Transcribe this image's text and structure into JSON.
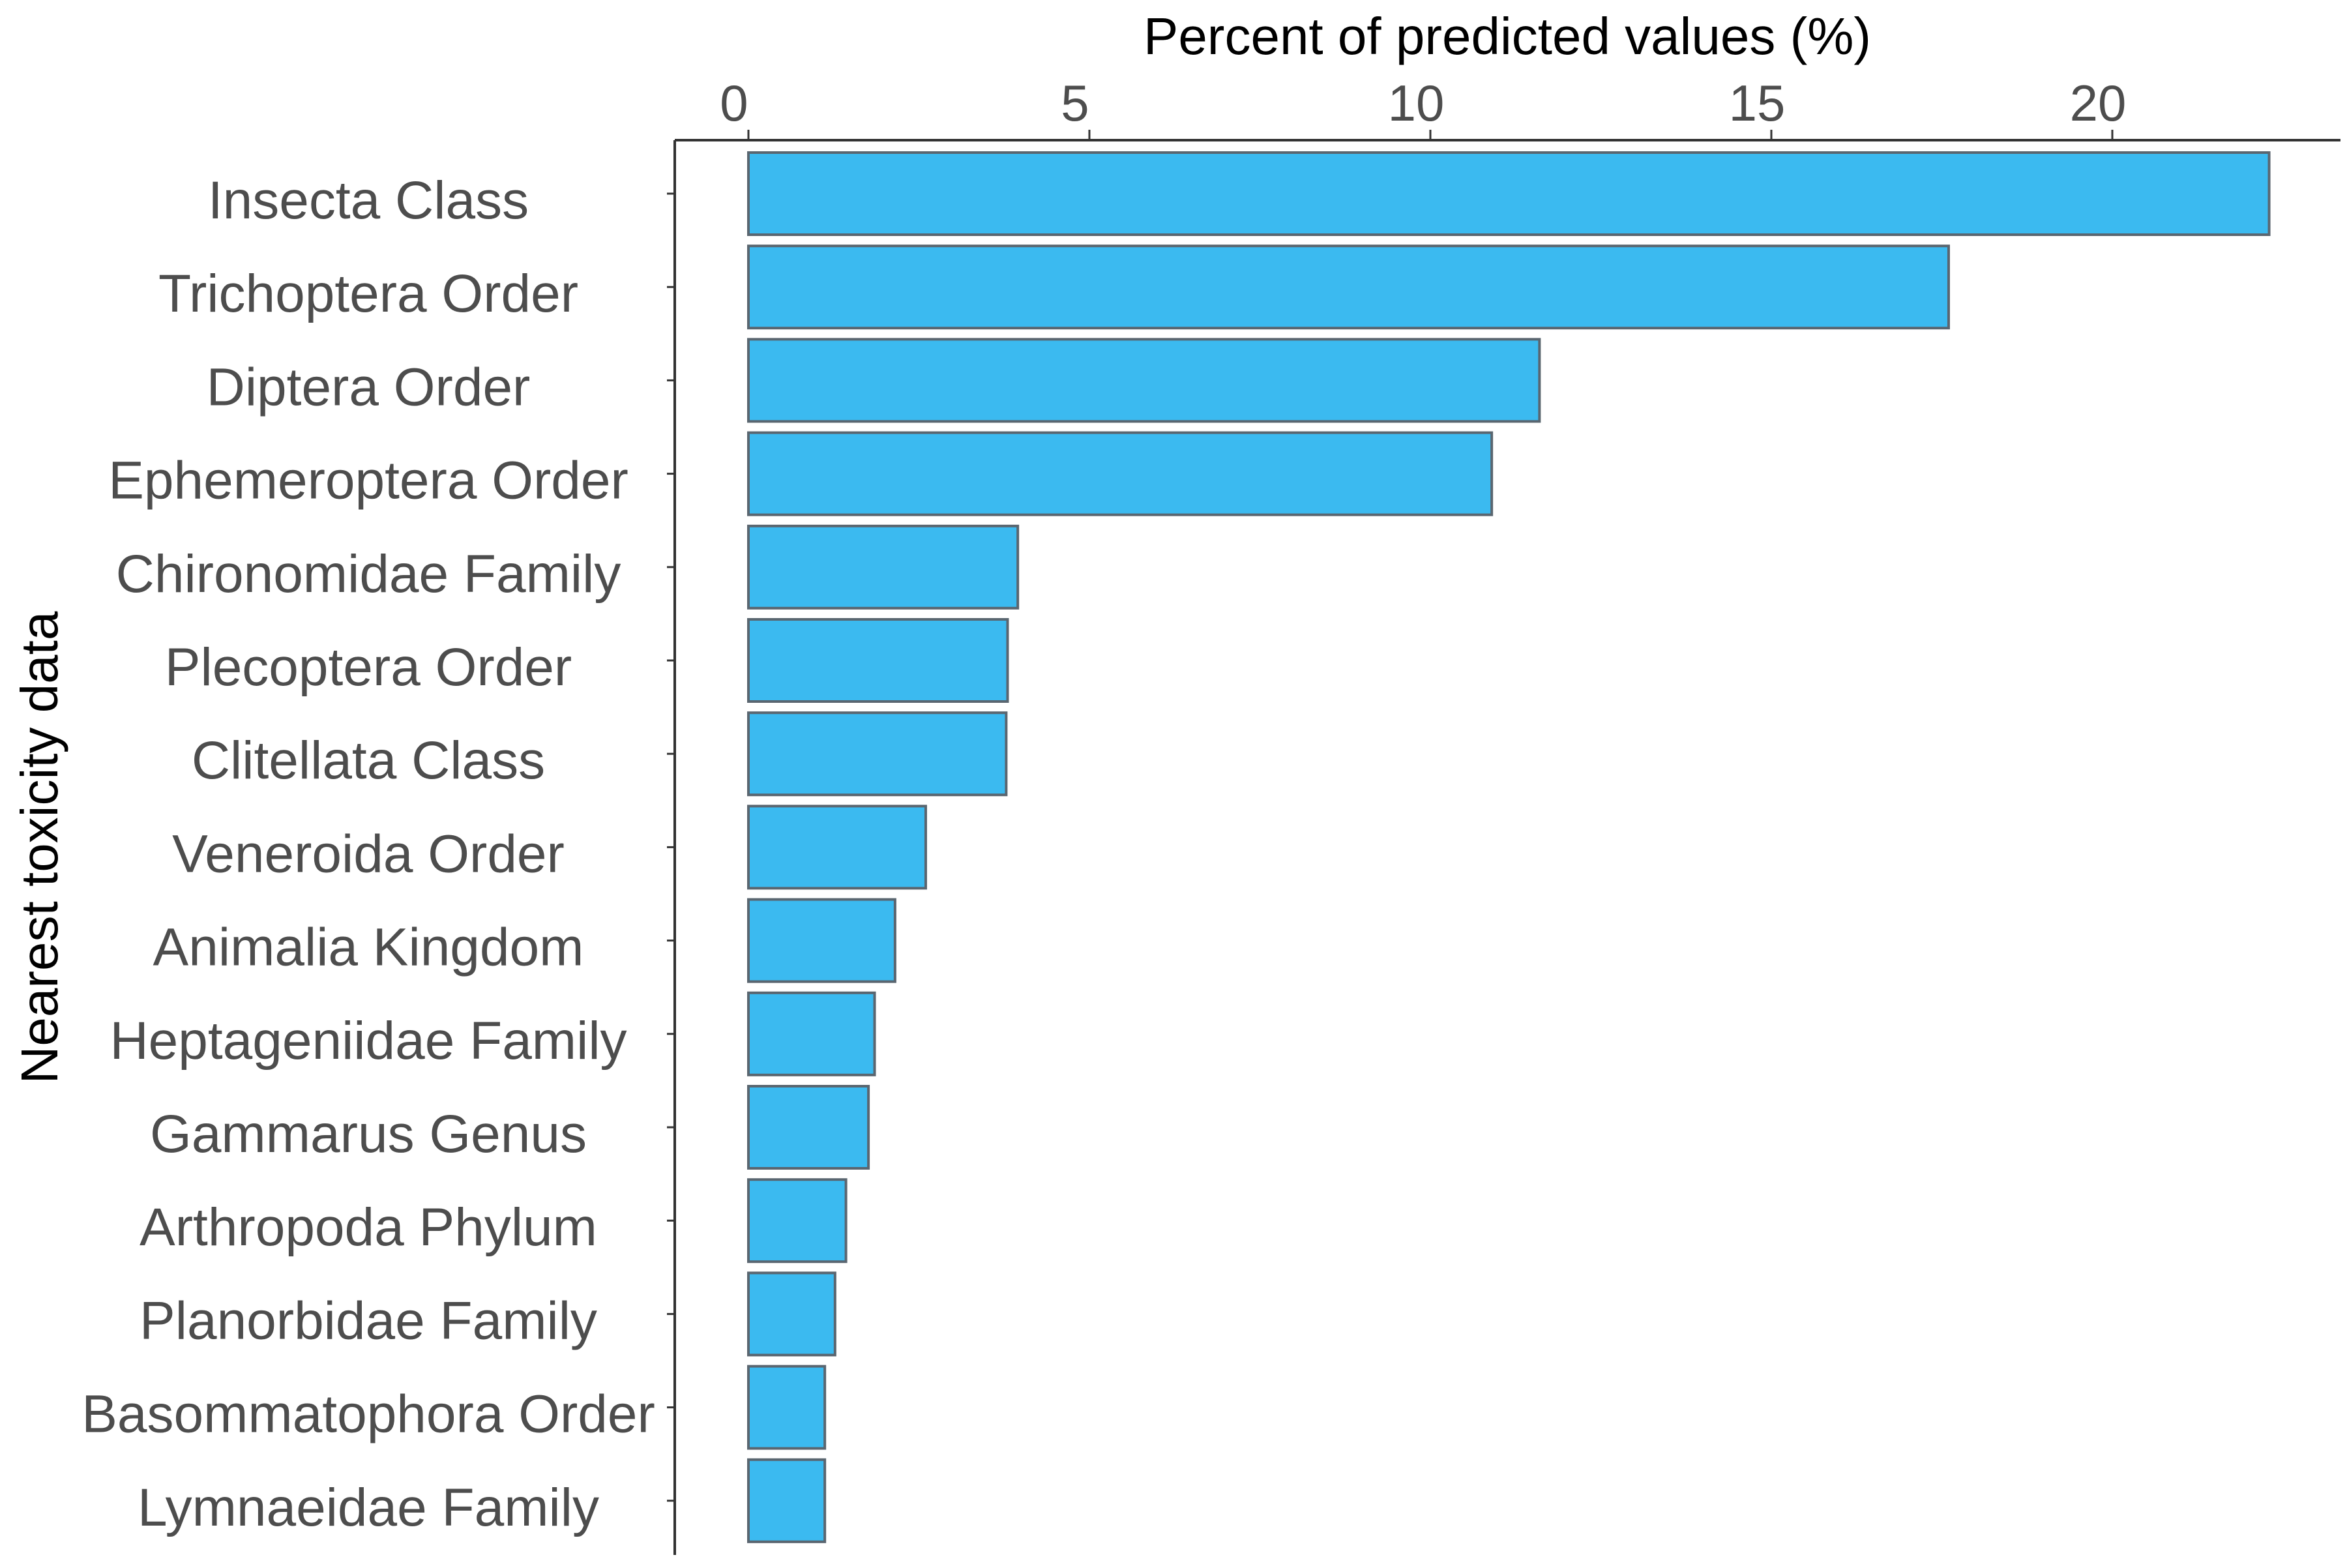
{
  "chart_data": {
    "type": "bar",
    "orientation": "horizontal",
    "title": "",
    "xlabel": "Percent of predicted values (%)",
    "ylabel": "Nearest toxicity data",
    "x_axis_position": "top",
    "xlim": [
      0,
      23.3
    ],
    "xticks": [
      0,
      5,
      10,
      15,
      20
    ],
    "grid": false,
    "legend": "none",
    "bar_color": "#3bbaf0",
    "bar_edge_color": "#5a6670",
    "categories": [
      "Insecta Class",
      "Trichoptera Order",
      "Diptera Order",
      "Ephemeroptera Order",
      "Chironomidae Family",
      "Plecoptera Order",
      "Clitellata Class",
      "Veneroida Order",
      "Animalia Kingdom",
      "Heptageniidae Family",
      "Gammarus Genus",
      "Arthropoda Phylum",
      "Planorbidae Family",
      "Basommatophora Order",
      "Lymnaeidae Family"
    ],
    "values": [
      22.3,
      17.6,
      11.6,
      10.9,
      3.95,
      3.8,
      3.78,
      2.6,
      2.15,
      1.85,
      1.76,
      1.43,
      1.27,
      1.12,
      1.12
    ]
  }
}
